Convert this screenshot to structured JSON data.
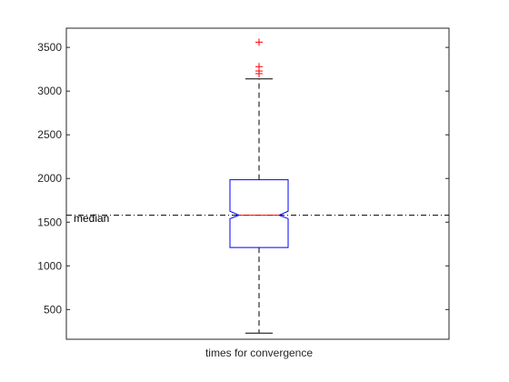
{
  "chart_data": {
    "type": "boxplot",
    "title": "",
    "xlabel": "times for convergence",
    "ylabel": "",
    "ylim": [
      160,
      3720
    ],
    "yticks": [
      500,
      1000,
      1500,
      2000,
      2500,
      3000,
      3500
    ],
    "grid": false,
    "box": {
      "name": "times for convergence",
      "q1": 1210,
      "median": 1580,
      "q3": 1985,
      "notch_low": 1540,
      "notch_high": 1625,
      "whisker_low": 230,
      "whisker_high": 3140,
      "outliers": [
        3200,
        3230,
        3280,
        3560
      ]
    },
    "reference_line": {
      "label": "median",
      "value": 1580
    },
    "colors": {
      "box": "#0000ff",
      "median": "#ff0000",
      "whisker": "#000000",
      "outlier": "#ff0000",
      "reference": "#000000"
    }
  }
}
